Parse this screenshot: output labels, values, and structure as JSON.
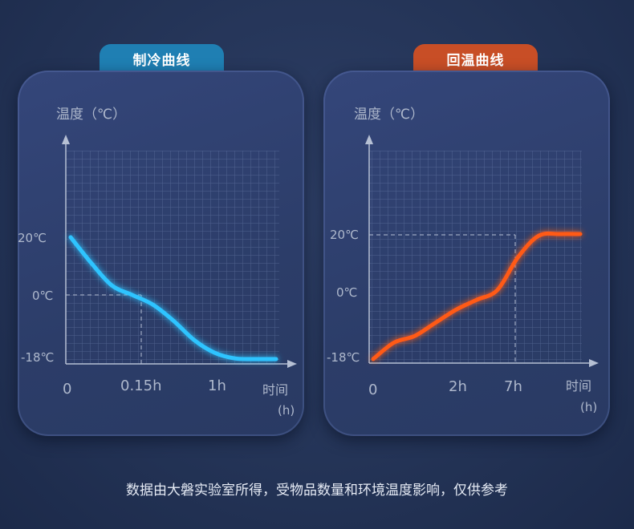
{
  "caption": "数据由大磐实验室所得，受物品数量和环境温度影响，仅供参考",
  "colors": {
    "cooling": "#2ec4ff",
    "rewarming": "#ff5a14",
    "tag_cooling": "#1f7fb3",
    "tag_rewarming": "#c84e26",
    "axis_text": "#aeb8cc"
  },
  "chart_data": [
    {
      "type": "line",
      "title": "制冷曲线",
      "ylabel": "温度（℃）",
      "xlabel": "时间",
      "xlabel_unit": "(h)",
      "x_ticks": [
        "0",
        "0.15h",
        "1h"
      ],
      "y_ticks": [
        "20℃",
        "0℃",
        "-18℃"
      ],
      "y_tick_values": [
        20,
        0,
        -18
      ],
      "grid": true,
      "reference_lines": [
        {
          "x": "0.15h",
          "y": 0
        }
      ],
      "series": [
        {
          "values": [
            20,
            12,
            5,
            2,
            -1,
            -6,
            -12,
            -16,
            -17.8,
            -18,
            -18
          ],
          "color": "#2ec4ff"
        }
      ]
    },
    {
      "type": "line",
      "title": "回温曲线",
      "ylabel": "温度（℃）",
      "xlabel": "时间",
      "xlabel_unit": "(h)",
      "x_ticks": [
        "0",
        "2h",
        "7h"
      ],
      "y_ticks": [
        "20℃",
        "0℃",
        "-18℃"
      ],
      "y_tick_values": [
        20,
        0,
        -18
      ],
      "grid": true,
      "reference_lines": [
        {
          "x": "7h",
          "y": 20
        }
      ],
      "series": [
        {
          "values": [
            -18,
            -13,
            -11,
            -7,
            -3,
            0,
            3,
            13,
            19.5,
            20,
            20
          ],
          "color": "#ff5a14"
        }
      ]
    }
  ]
}
